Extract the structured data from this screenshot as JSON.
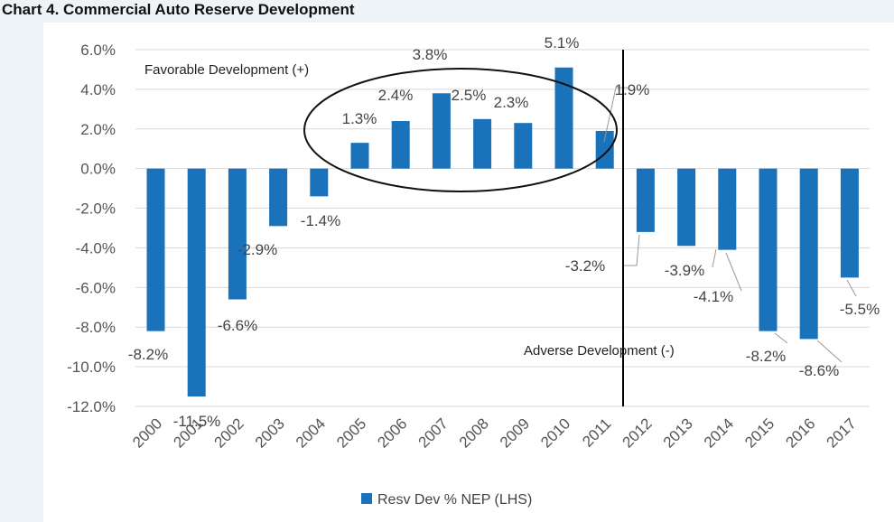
{
  "title": "Chart 4. Commercial Auto Reserve Development",
  "chart_data": {
    "type": "bar",
    "categories": [
      "2000",
      "2001",
      "2002",
      "2003",
      "2004",
      "2005",
      "2006",
      "2007",
      "2008",
      "2009",
      "2010",
      "2011",
      "2012",
      "2013",
      "2014",
      "2015",
      "2016",
      "2017"
    ],
    "series": [
      {
        "name": "Resv Dev % NEP (LHS)",
        "values": [
          -8.2,
          -11.5,
          -6.6,
          -2.9,
          -1.4,
          1.3,
          2.4,
          3.8,
          2.5,
          2.3,
          5.1,
          1.9,
          -3.2,
          -3.9,
          -4.1,
          -8.2,
          -8.6,
          -5.5
        ],
        "labels": [
          "-8.2%",
          "-11.5%",
          "-6.6%",
          "-2.9%",
          "-1.4%",
          "1.3%",
          "2.4%",
          "3.8%",
          "2.5%",
          "2.3%",
          "5.1%",
          "1.9%",
          "-3.2%",
          "-3.9%",
          "-4.1%",
          "-8.2%",
          "-8.6%",
          "-5.5%"
        ],
        "color": "#1a72bb"
      }
    ],
    "yticks": [
      "6.0%",
      "4.0%",
      "2.0%",
      "0.0%",
      "-2.0%",
      "-4.0%",
      "-6.0%",
      "-8.0%",
      "-10.0%",
      "-12.0%"
    ],
    "ylim": [
      -12,
      6
    ],
    "grid": true,
    "legend_position": "bottom-center",
    "annotations": {
      "favorable": "Favorable Development (+)",
      "adverse": "Adverse Development (-)"
    },
    "colors": {
      "bar": "#1a72bb",
      "grid": "#d9d9d9",
      "divider": "#000000"
    }
  }
}
